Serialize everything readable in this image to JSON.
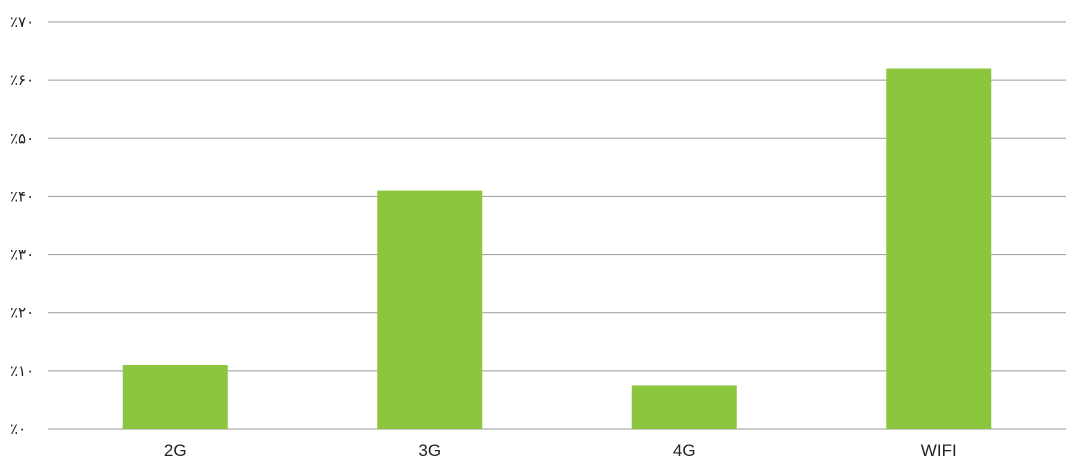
{
  "chart_data": {
    "type": "bar",
    "categories": [
      "2G",
      "3G",
      "4G",
      "WIFI"
    ],
    "values": [
      11,
      41,
      7.5,
      62
    ],
    "ylim": [
      0,
      70
    ],
    "yticks": [
      0,
      10,
      20,
      30,
      40,
      50,
      60,
      70
    ],
    "ytick_labels": [
      "٪۰",
      "٪۱۰",
      "٪۲۰",
      "٪۳۰",
      "٪۴۰",
      "٪۵۰",
      "٪۶۰",
      "٪۷۰"
    ],
    "title": "",
    "xlabel": "",
    "ylabel": "",
    "grid": true,
    "legend": "none",
    "bar_color": "#8cc63f",
    "grid_color": "#9a9a9a"
  }
}
